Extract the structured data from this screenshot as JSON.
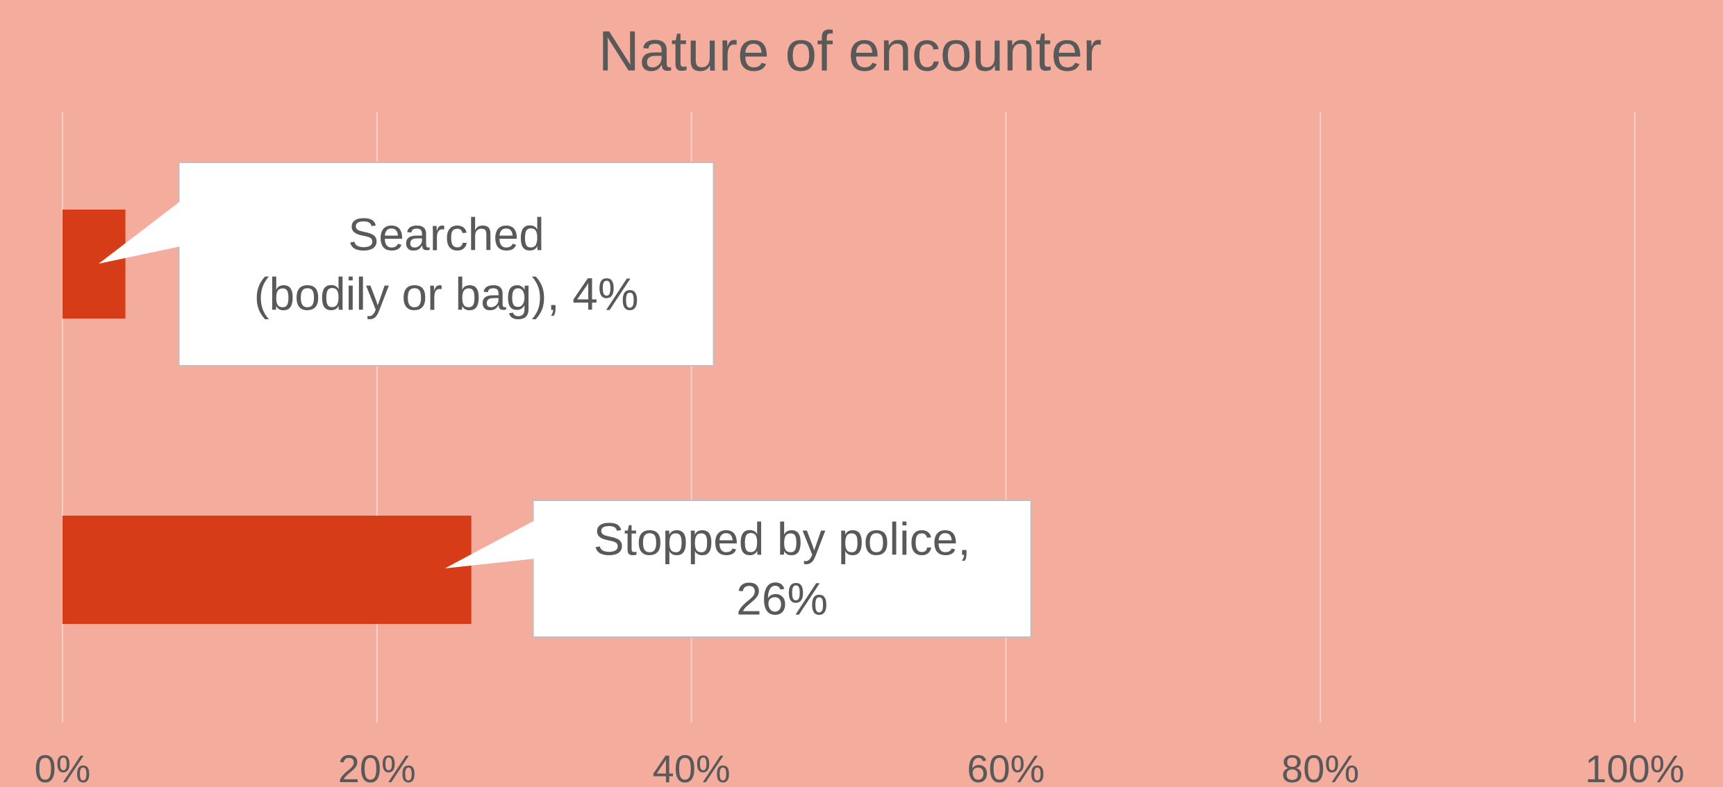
{
  "chart_data": {
    "type": "bar",
    "orientation": "horizontal",
    "title": "Nature of encounter",
    "values": [
      4,
      26
    ],
    "value_labels": [
      "Searched\n(bodily or bag), 4%",
      "Stopped by police,\n26%"
    ],
    "color": "#d63c18",
    "xlim": [
      0,
      100
    ],
    "xticks": [
      {
        "value": 0,
        "label": "0%"
      },
      {
        "value": 20,
        "label": "20%"
      },
      {
        "value": 40,
        "label": "40%"
      },
      {
        "value": 60,
        "label": "60%"
      },
      {
        "value": 80,
        "label": "80%"
      },
      {
        "value": 100,
        "label": "100%"
      }
    ],
    "grid": true
  }
}
